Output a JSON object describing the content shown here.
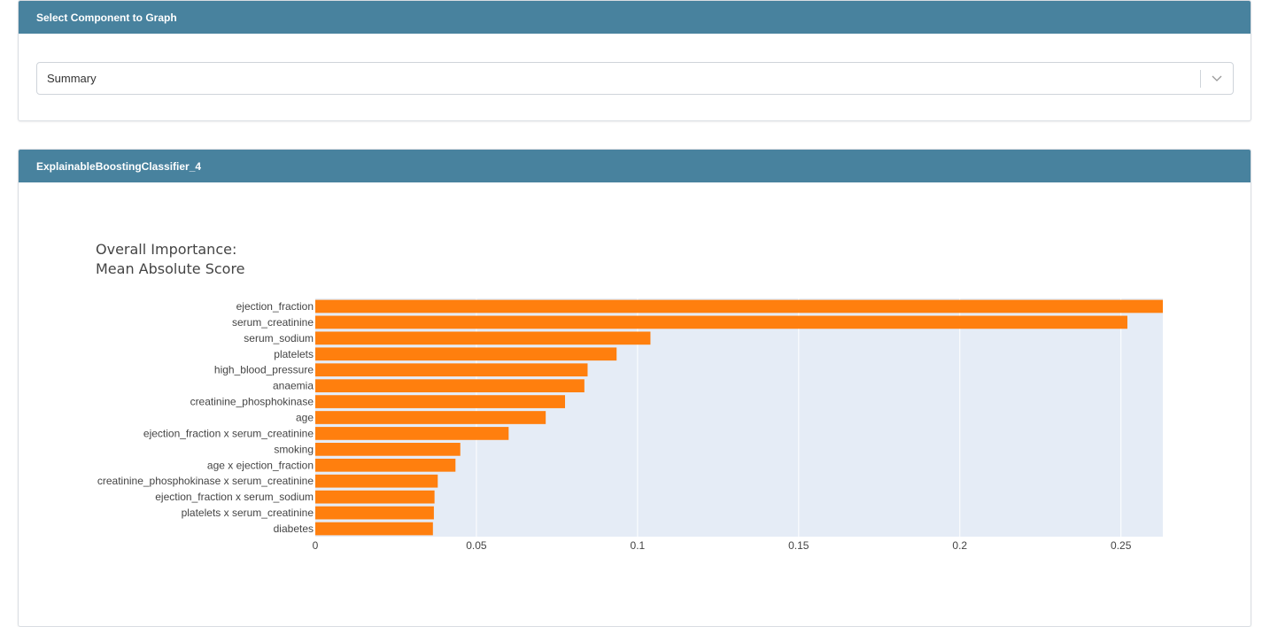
{
  "selector_panel": {
    "header": "Select Component to Graph",
    "selected_value": "Summary"
  },
  "graph_panel": {
    "header": "ExplainableBoostingClassifier_4"
  },
  "colors": {
    "header_bg": "#48829e",
    "bar": "#ff7f0e",
    "plot_bg": "#e5ecf6"
  },
  "chart_data": {
    "type": "bar",
    "orientation": "horizontal",
    "title_lines": [
      "Overall Importance:",
      "Mean Absolute Score"
    ],
    "categories": [
      "ejection_fraction",
      "serum_creatinine",
      "serum_sodium",
      "platelets",
      "high_blood_pressure",
      "anaemia",
      "creatinine_phosphokinase",
      "age",
      "ejection_fraction x serum_creatinine",
      "smoking",
      "age x ejection_fraction",
      "creatinine_phosphokinase x serum_creatinine",
      "ejection_fraction x serum_sodium",
      "platelets x serum_creatinine",
      "diabetes"
    ],
    "values": [
      0.263,
      0.252,
      0.104,
      0.0935,
      0.0845,
      0.0835,
      0.0775,
      0.0715,
      0.06,
      0.045,
      0.0435,
      0.038,
      0.037,
      0.0368,
      0.0365
    ],
    "xlim": [
      0,
      0.263
    ],
    "xticks": [
      0,
      0.05,
      0.1,
      0.15,
      0.2,
      0.25
    ],
    "xtick_labels": [
      "0",
      "0.05",
      "0.1",
      "0.15",
      "0.2",
      "0.25"
    ],
    "grid": true
  }
}
